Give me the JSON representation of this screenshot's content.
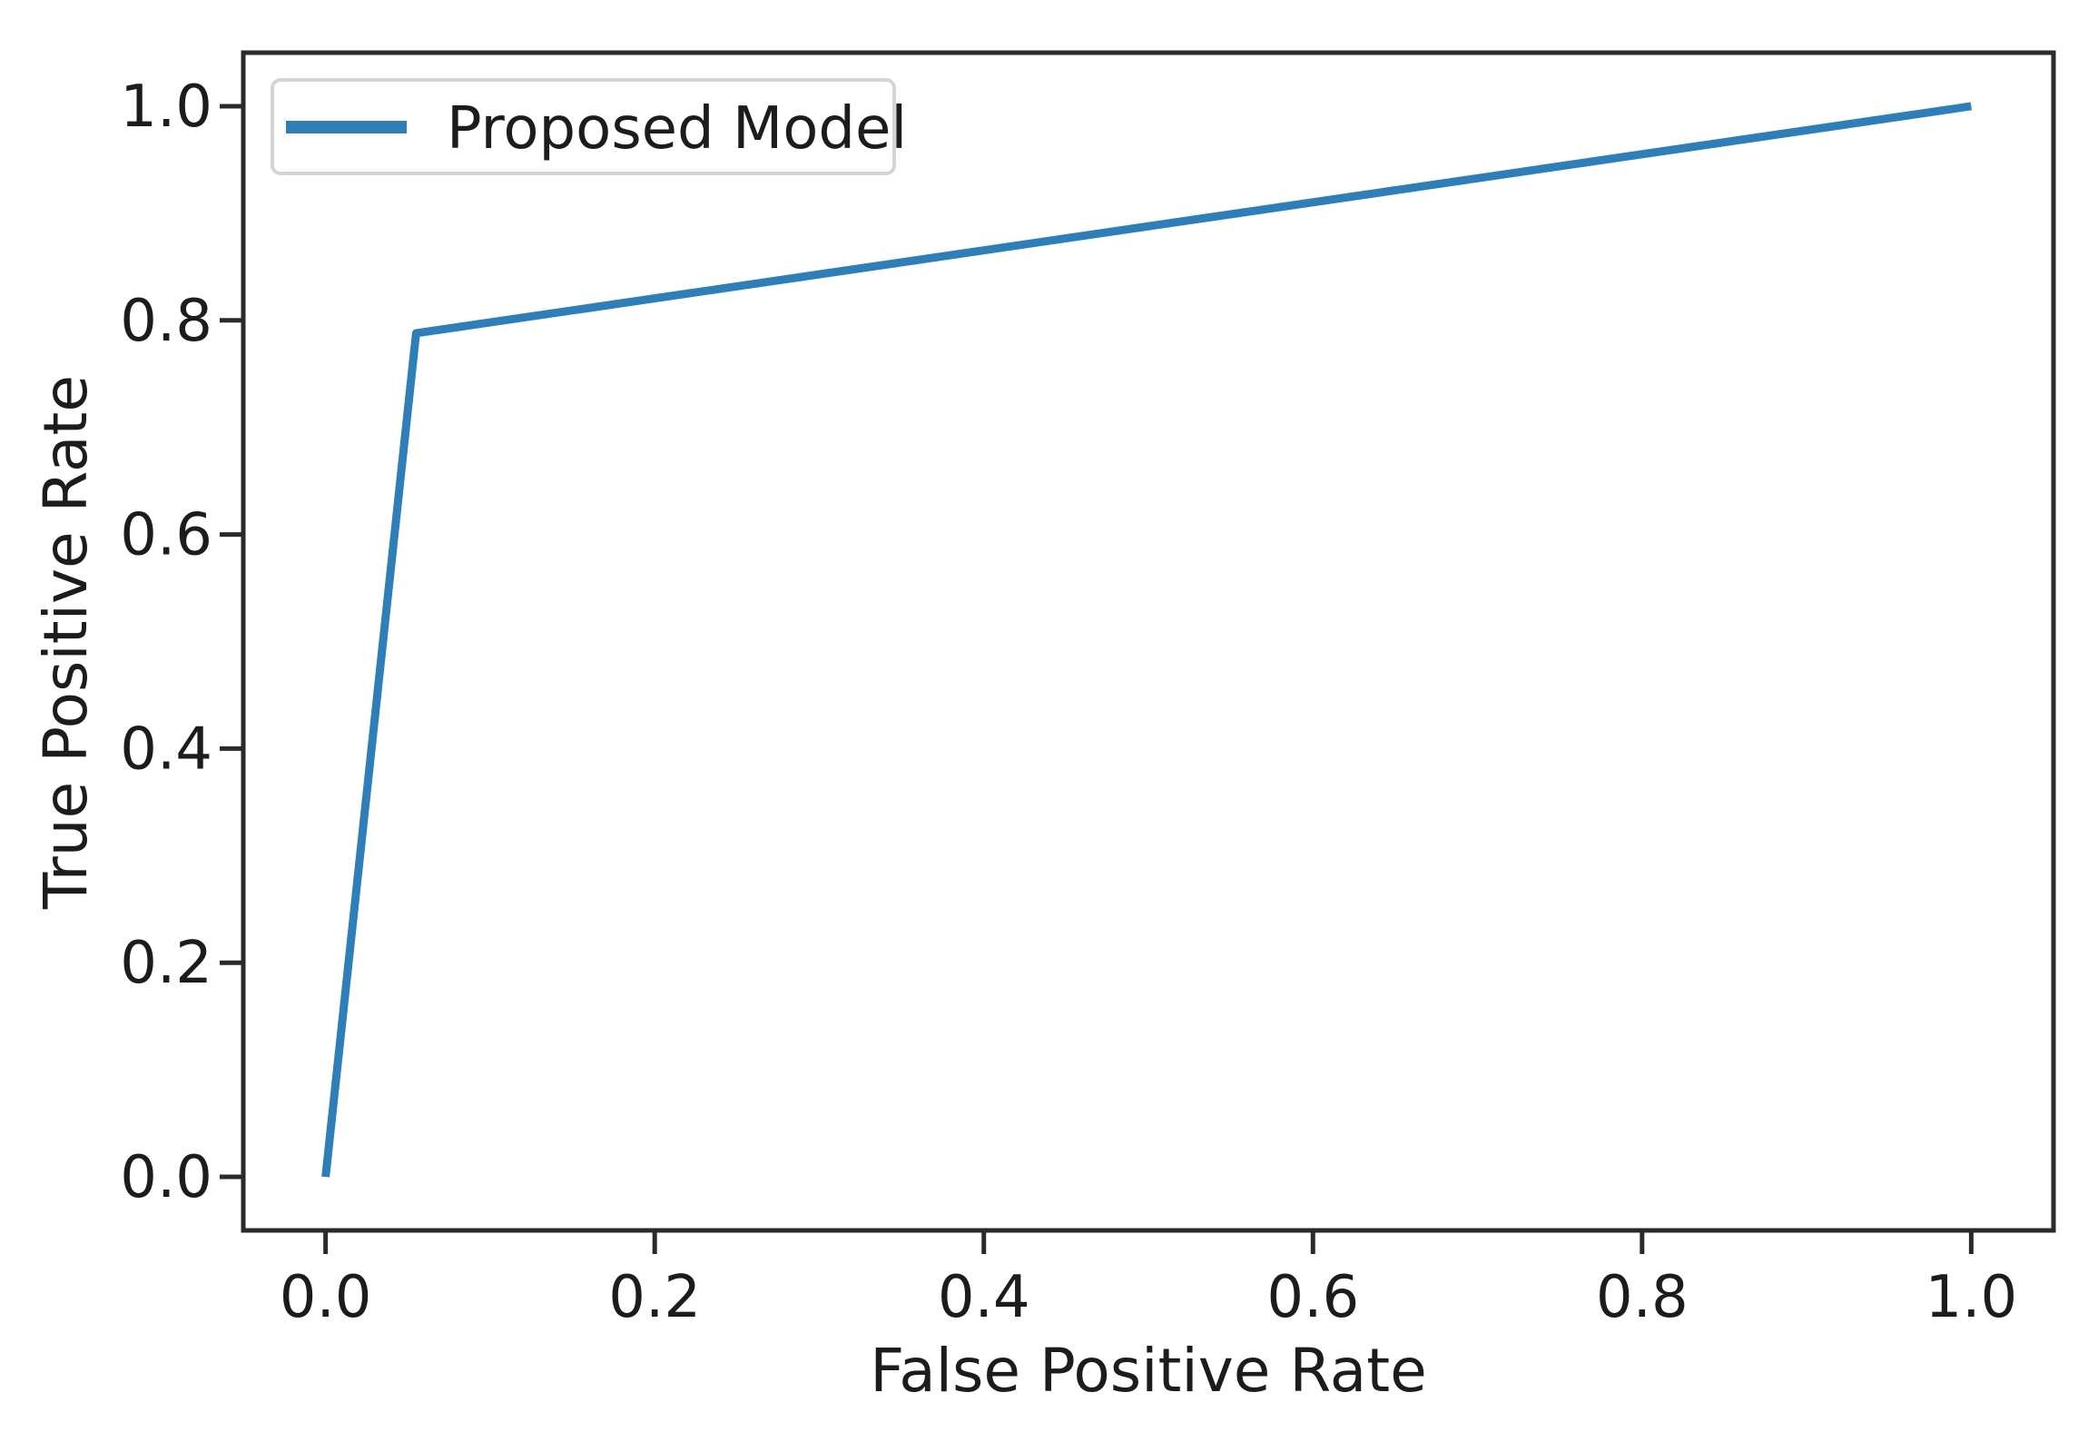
{
  "figure": {
    "background": "#ffffff",
    "text_color": "#1c1c1c",
    "spine_color": "#2a2a2a",
    "legend_border_color": "#d4d4d4"
  },
  "chart_data": {
    "type": "line",
    "title": "",
    "xlabel": "False Positive Rate",
    "ylabel": "True Positive Rate",
    "xlim": [
      -0.05,
      1.05
    ],
    "ylim": [
      -0.05,
      1.05
    ],
    "x_ticks": [
      0.0,
      0.2,
      0.4,
      0.6,
      0.8,
      1.0
    ],
    "y_ticks": [
      0.0,
      0.2,
      0.4,
      0.6,
      0.8,
      1.0
    ],
    "x_tick_labels": [
      "0.0",
      "0.2",
      "0.4",
      "0.6",
      "0.8",
      "1.0"
    ],
    "y_tick_labels": [
      "0.0",
      "0.2",
      "0.4",
      "0.6",
      "0.8",
      "1.0"
    ],
    "grid": false,
    "legend": {
      "position": "upper left",
      "entries": [
        {
          "label": "Proposed Model",
          "color": "#2e7eb8"
        }
      ]
    },
    "series": [
      {
        "name": "Proposed Model",
        "color": "#2e7eb8",
        "points": [
          [
            0.0,
            0.0
          ],
          [
            0.055,
            0.788
          ],
          [
            1.0,
            1.0
          ]
        ]
      }
    ]
  }
}
